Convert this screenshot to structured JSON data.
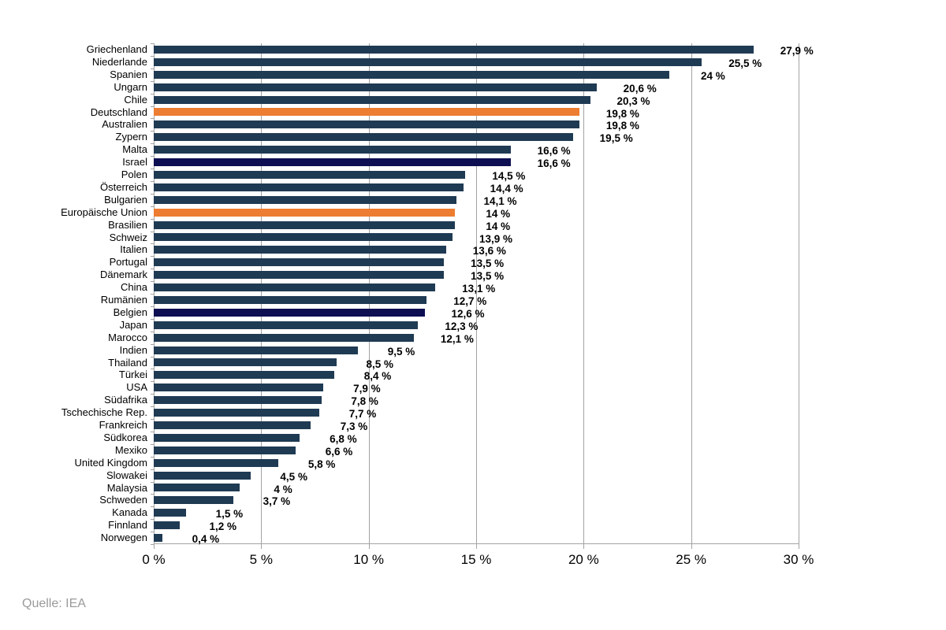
{
  "chart_data": {
    "type": "bar",
    "orientation": "horizontal",
    "title": "",
    "xlabel": "",
    "ylabel": "",
    "xlim": [
      0,
      30
    ],
    "grid": true,
    "unit": "%",
    "x_tick_values": [
      0,
      5,
      10,
      15,
      20,
      25,
      30
    ],
    "x_tick_labels": [
      "0 %",
      "5 %",
      "10 %",
      "15 %",
      "20 %",
      "25 %",
      "30 %"
    ],
    "categories": [
      "Griechenland",
      "Niederlande",
      "Spanien",
      "Ungarn",
      "Chile",
      "Deutschland",
      "Australien",
      "Zypern",
      "Malta",
      "Israel",
      "Polen",
      "Österreich",
      "Bulgarien",
      "Europäische Union",
      "Brasilien",
      "Schweiz",
      "Italien",
      "Portugal",
      "Dänemark",
      "China",
      "Rumänien",
      "Belgien",
      "Japan",
      "Marocco",
      "Indien",
      "Thailand",
      "Türkei",
      "USA",
      "Südafrika",
      "Tschechische Rep.",
      "Frankreich",
      "Südkorea",
      "Mexiko",
      "United Kingdom",
      "Slowakei",
      "Malaysia",
      "Schweden",
      "Kanada",
      "Finnland",
      "Norwegen"
    ],
    "values": [
      27.9,
      25.5,
      24,
      20.6,
      20.3,
      19.8,
      19.8,
      19.5,
      16.6,
      16.6,
      14.5,
      14.4,
      14.1,
      14,
      14,
      13.9,
      13.6,
      13.5,
      13.5,
      13.1,
      12.7,
      12.6,
      12.3,
      12.1,
      9.5,
      8.5,
      8.4,
      7.9,
      7.8,
      7.7,
      7.3,
      6.8,
      6.6,
      5.8,
      4.5,
      4,
      3.7,
      1.5,
      1.2,
      0.4
    ],
    "value_labels": [
      "27,9 %",
      "25,5 %",
      "24 %",
      "20,6 %",
      "20,3 %",
      "19,8 %",
      "19,8 %",
      "19,5 %",
      "16,6 %",
      "16,6 %",
      "14,5 %",
      "14,4 %",
      "14,1 %",
      "14 %",
      "14 %",
      "13,9 %",
      "13,6 %",
      "13,5 %",
      "13,5 %",
      "13,1 %",
      "12,7 %",
      "12,6 %",
      "12,3 %",
      "12,1 %",
      "9,5 %",
      "8,5 %",
      "8,4 %",
      "7,9 %",
      "7,8 %",
      "7,7 %",
      "7,3 %",
      "6,8 %",
      "6,6 %",
      "5,8 %",
      "4,5 %",
      "4 %",
      "3,7 %",
      "1,5 %",
      "1,2 %",
      "0,4 %"
    ],
    "bar_color_keys": [
      "default",
      "default",
      "default",
      "default",
      "default",
      "orange",
      "default",
      "default",
      "default",
      "navy",
      "default",
      "default",
      "default",
      "orange",
      "default",
      "default",
      "default",
      "default",
      "default",
      "default",
      "default",
      "navy",
      "default",
      "default",
      "default",
      "default",
      "default",
      "default",
      "default",
      "default",
      "default",
      "default",
      "default",
      "default",
      "default",
      "default",
      "default",
      "default",
      "default",
      "default"
    ],
    "legend": [],
    "source": "Quelle: IEA"
  },
  "colors": {
    "bar_default": "#1F3A53",
    "bar_orange": "#ED7D31",
    "bar_navy": "#0E0E52",
    "gridline": "#A3A3A3",
    "axis": "#A3A3A3",
    "tick": "#A3A3A3",
    "value_text": "#000000",
    "category_text": "#000000",
    "source_text": "#9A9A9A"
  }
}
